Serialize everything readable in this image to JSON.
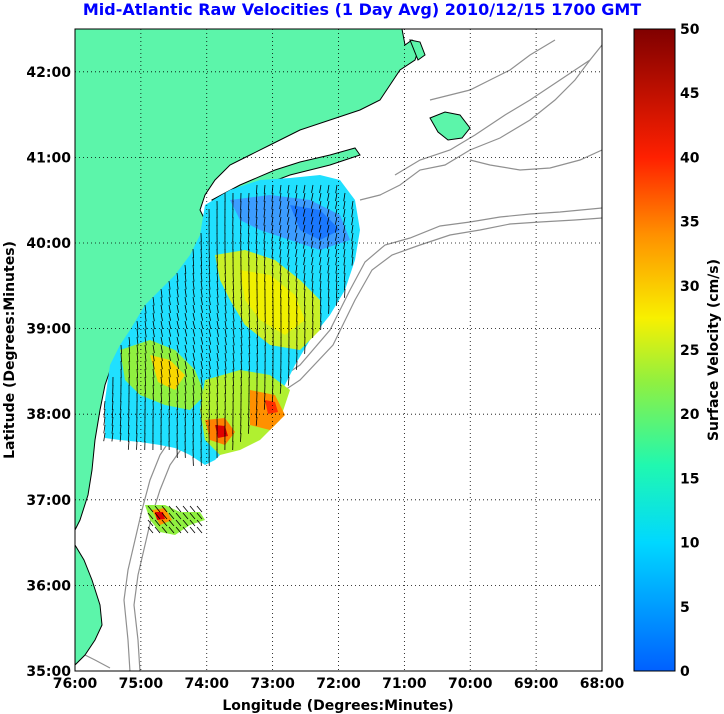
{
  "title": "Mid-Atlantic Raw Velocities (1 Day Avg) 2010/12/15 1700 GMT",
  "axes": {
    "xlabel": "Longitude (Degrees:Minutes)",
    "ylabel": "Latitude (Degrees:Minutes)",
    "x_ticks": [
      "76:00",
      "75:00",
      "74:00",
      "73:00",
      "72:00",
      "71:00",
      "70:00",
      "69:00",
      "68:00"
    ],
    "y_ticks": [
      "35:00",
      "36:00",
      "37:00",
      "38:00",
      "39:00",
      "40:00",
      "41:00",
      "42:00"
    ],
    "x_range_deg_west": [
      76,
      68
    ],
    "y_range_deg_north": [
      35,
      42.5
    ],
    "grid": "dotted"
  },
  "colorbar": {
    "label": "Surface Velocity (cm/s)",
    "ticks": [
      "0",
      "5",
      "10",
      "15",
      "20",
      "25",
      "30",
      "35",
      "40",
      "45",
      "50"
    ],
    "range": [
      0,
      50
    ],
    "colormap": "jet"
  },
  "colors": {
    "land": "#5cf5aa",
    "title": "#0000ff",
    "coast_line": "#000000",
    "isobath": "#909090"
  }
}
